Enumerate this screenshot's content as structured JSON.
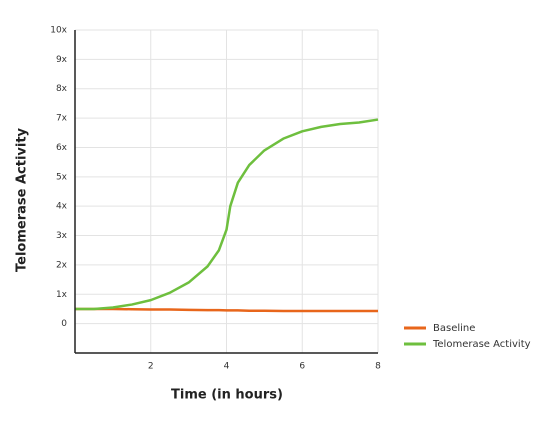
{
  "chart_data": {
    "type": "line",
    "x_label": "Time (in hours)",
    "y_label": "Telomerase Activity",
    "x": [
      0,
      0.5,
      1,
      1.5,
      2,
      2.5,
      3,
      3.5,
      3.8,
      4,
      4.1,
      4.3,
      4.6,
      5,
      5.5,
      6,
      6.5,
      7,
      7.5,
      8
    ],
    "series": [
      {
        "name": "Baseline",
        "color": "#e8661b",
        "values": [
          0.5,
          0.5,
          0.5,
          0.49,
          0.48,
          0.48,
          0.47,
          0.46,
          0.46,
          0.45,
          0.45,
          0.45,
          0.44,
          0.44,
          0.43,
          0.43,
          0.43,
          0.43,
          0.43,
          0.43
        ]
      },
      {
        "name": "Telomerase Activity",
        "color": "#6ebf3e",
        "values": [
          0.5,
          0.5,
          0.55,
          0.65,
          0.8,
          1.05,
          1.4,
          1.95,
          2.5,
          3.2,
          4.0,
          4.8,
          5.4,
          5.9,
          6.3,
          6.55,
          6.7,
          6.8,
          6.85,
          6.95
        ]
      }
    ],
    "xlim": [
      0,
      8
    ],
    "xticks": [
      2,
      4,
      6,
      8
    ],
    "ylim": [
      -1,
      10
    ],
    "yticks": [
      0,
      {
        "value": 1,
        "label": "1x"
      },
      {
        "value": 2,
        "label": "2x"
      },
      {
        "value": 3,
        "label": "3x"
      },
      {
        "value": 4,
        "label": "4x"
      },
      {
        "value": 5,
        "label": "5x"
      },
      {
        "value": 6,
        "label": "6x"
      },
      {
        "value": 7,
        "label": "7x"
      },
      {
        "value": 8,
        "label": "8x"
      },
      {
        "value": 9,
        "label": "9x"
      },
      {
        "value": 10,
        "label": "10x"
      }
    ],
    "grid": true,
    "legend": "bottom-right"
  }
}
